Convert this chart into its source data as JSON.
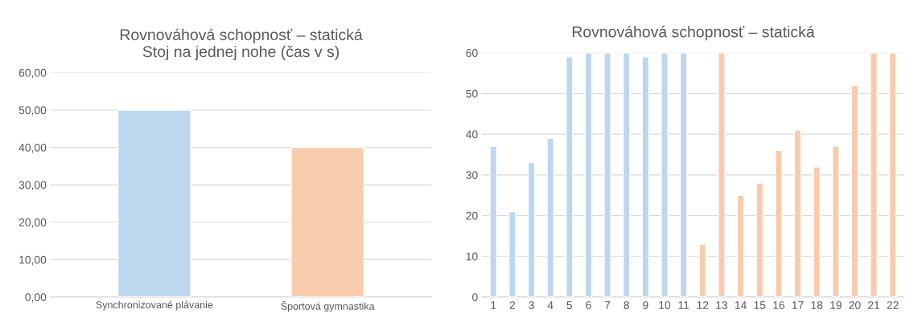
{
  "chart_data": [
    {
      "type": "bar",
      "title": "Rovnováhová schopnosť – statická\nStoj na jednej nohe (čas v s)",
      "categories": [
        "Synchronizované plávanie",
        "Športová gymnastika"
      ],
      "values": [
        50,
        40
      ],
      "colors": [
        "#bdd7ee",
        "#f8cbad"
      ],
      "ylim": [
        0,
        60
      ],
      "yticks": [
        {
          "value": 0,
          "label": "0,00"
        },
        {
          "value": 10,
          "label": "10,00"
        },
        {
          "value": 20,
          "label": "20,00"
        },
        {
          "value": 30,
          "label": "30,00"
        },
        {
          "value": 40,
          "label": "40,00"
        },
        {
          "value": 50,
          "label": "50,00"
        },
        {
          "value": 60,
          "label": "60,00"
        }
      ],
      "grid": "y"
    },
    {
      "type": "bar",
      "title": "Rovnováhová schopnosť – statická",
      "categories": [
        "1",
        "2",
        "3",
        "4",
        "5",
        "6",
        "7",
        "8",
        "9",
        "10",
        "11",
        "12",
        "13",
        "14",
        "15",
        "16",
        "17",
        "18",
        "19",
        "20",
        "21",
        "22"
      ],
      "values": [
        37,
        21,
        33,
        39,
        59,
        60,
        60,
        60,
        59,
        60,
        60,
        13,
        60,
        25,
        28,
        36,
        41,
        32,
        37,
        52,
        60,
        60
      ],
      "colors": [
        "#bdd7ee",
        "#bdd7ee",
        "#bdd7ee",
        "#bdd7ee",
        "#bdd7ee",
        "#bdd7ee",
        "#bdd7ee",
        "#bdd7ee",
        "#bdd7ee",
        "#bdd7ee",
        "#bdd7ee",
        "#f8cbad",
        "#f8cbad",
        "#f8cbad",
        "#f8cbad",
        "#f8cbad",
        "#f8cbad",
        "#f8cbad",
        "#f8cbad",
        "#f8cbad",
        "#f8cbad",
        "#f8cbad"
      ],
      "ylim": [
        0,
        60
      ],
      "yticks": [
        0,
        10,
        20,
        30,
        40,
        50,
        60
      ],
      "grid": "y"
    }
  ]
}
